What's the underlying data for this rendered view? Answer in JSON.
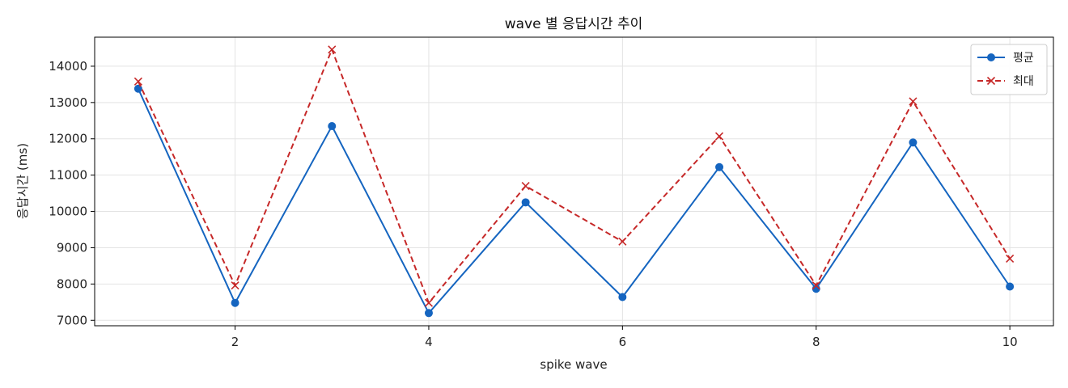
{
  "chart_data": {
    "type": "line",
    "title": "wave 별 응답시간 추이",
    "xlabel": "spike wave",
    "ylabel": "응답시간 (ms)",
    "x": [
      1,
      2,
      3,
      4,
      5,
      6,
      7,
      8,
      9,
      10
    ],
    "xlim": [
      0.55,
      10.45
    ],
    "ylim": [
      6850,
      14800
    ],
    "xticks": [
      2,
      4,
      6,
      8,
      10
    ],
    "yticks": [
      7000,
      8000,
      9000,
      10000,
      11000,
      12000,
      13000,
      14000
    ],
    "grid": true,
    "legend_position": "top-right",
    "series": [
      {
        "name": "평균",
        "color": "#1565c0",
        "line_style": "solid",
        "marker": "circle",
        "values": [
          13380,
          7480,
          12350,
          7200,
          10250,
          7640,
          11220,
          7870,
          11900,
          7930
        ]
      },
      {
        "name": "최대",
        "color": "#c62828",
        "line_style": "dashed",
        "marker": "x",
        "values": [
          13580,
          7960,
          14460,
          7480,
          10700,
          9170,
          12070,
          7960,
          13030,
          8700
        ]
      }
    ]
  }
}
